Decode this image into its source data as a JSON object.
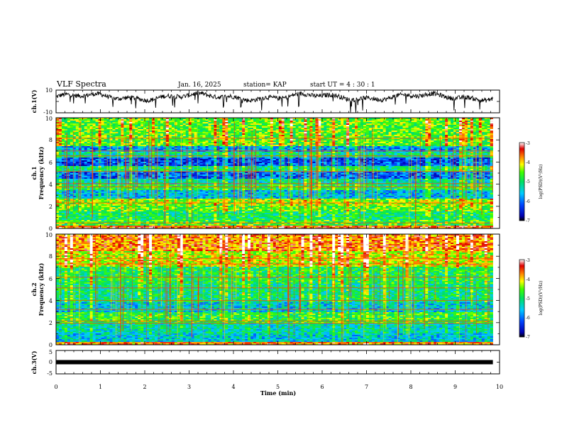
{
  "header": {
    "title": "VLF Spectra",
    "date": "Jan. 16, 2025",
    "station": "station= KAP",
    "start": "start  UT =  4 : 30 : 1"
  },
  "chart_data": [
    {
      "type": "line",
      "name": "ch1-waveform",
      "ylabel": "ch.1(V)",
      "ylim": [
        -10,
        10
      ],
      "ytick_labels": [
        "10",
        "-10"
      ],
      "xlim": [
        0,
        10
      ],
      "extent_min": 9.85,
      "baseline": 4.0,
      "amplitude": 4.5
    },
    {
      "type": "heatmap",
      "name": "ch1-spectrogram",
      "ylabel_line1": "ch.1",
      "ylabel_line2": "Frequency (kHz)",
      "ylim": [
        0,
        10
      ],
      "ytick_labels": [
        "0",
        "2",
        "4",
        "6",
        "8",
        "10"
      ],
      "xlim": [
        0,
        10
      ],
      "extent_min": 9.85,
      "zlim": [
        -7,
        -3
      ],
      "bands": [
        [
          0,
          0.3,
          -3.6
        ],
        [
          0.3,
          0.8,
          -4.7
        ],
        [
          0.8,
          1.6,
          -5.0
        ],
        [
          1.6,
          2.1,
          -4.6
        ],
        [
          2.1,
          2.7,
          -4.4
        ],
        [
          2.7,
          3.5,
          -5.6
        ],
        [
          3.5,
          4.0,
          -4.9
        ],
        [
          4.0,
          4.5,
          -5.3
        ],
        [
          4.5,
          5.1,
          -6.1
        ],
        [
          5.1,
          5.6,
          -5.1
        ],
        [
          5.6,
          6.4,
          -6.2
        ],
        [
          6.4,
          6.9,
          -5.2
        ],
        [
          6.9,
          7.5,
          -5.8
        ],
        [
          7.5,
          10,
          -4.6
        ]
      ],
      "lines": [
        0.2,
        0.5,
        2.3,
        3.75,
        4.05,
        5.15,
        6.55,
        7.0,
        8.15
      ]
    },
    {
      "type": "heatmap",
      "name": "ch2-spectrogram",
      "ylabel_line1": "ch.2",
      "ylabel_line2": "Frequency (kHz)",
      "ylim": [
        0,
        10
      ],
      "ytick_labels": [
        "0",
        "2",
        "4",
        "6",
        "8",
        "10"
      ],
      "xlim": [
        0,
        10
      ],
      "extent_min": 9.85,
      "zlim": [
        -7,
        -3
      ],
      "bands": [
        [
          0,
          0.3,
          -3.8
        ],
        [
          0.3,
          1.0,
          -5.5
        ],
        [
          1.0,
          1.9,
          -5.3
        ],
        [
          1.9,
          2.9,
          -4.8
        ],
        [
          2.9,
          3.8,
          -5.5
        ],
        [
          3.8,
          5.5,
          -5.1
        ],
        [
          5.5,
          7.0,
          -4.9
        ],
        [
          7.0,
          8.5,
          -4.2
        ],
        [
          8.5,
          10,
          -3.7
        ]
      ],
      "lines": [
        0.2,
        1.95,
        2.15,
        3.2,
        4.0,
        5.15,
        6.1,
        7.3,
        7.8
      ]
    },
    {
      "type": "line",
      "name": "ch3-waveform",
      "ylabel": "ch.3(V)",
      "ylim": [
        -5,
        5
      ],
      "ytick_labels": [
        "5",
        "0",
        "-5"
      ],
      "xlim": [
        0,
        10
      ],
      "extent_min": 9.85,
      "baseline": 0,
      "amplitude": 0.6
    }
  ],
  "x_axis": {
    "label": "Time (min)",
    "tick_labels": [
      "0",
      "1",
      "2",
      "3",
      "4",
      "5",
      "6",
      "7",
      "8",
      "9",
      "10"
    ]
  },
  "colorbar": {
    "label": "log(PSD)(V²/Hz)",
    "tick_labels": [
      "-3",
      "-4",
      "-5",
      "-6",
      "-7"
    ],
    "zlim": [
      -7,
      -3
    ]
  }
}
